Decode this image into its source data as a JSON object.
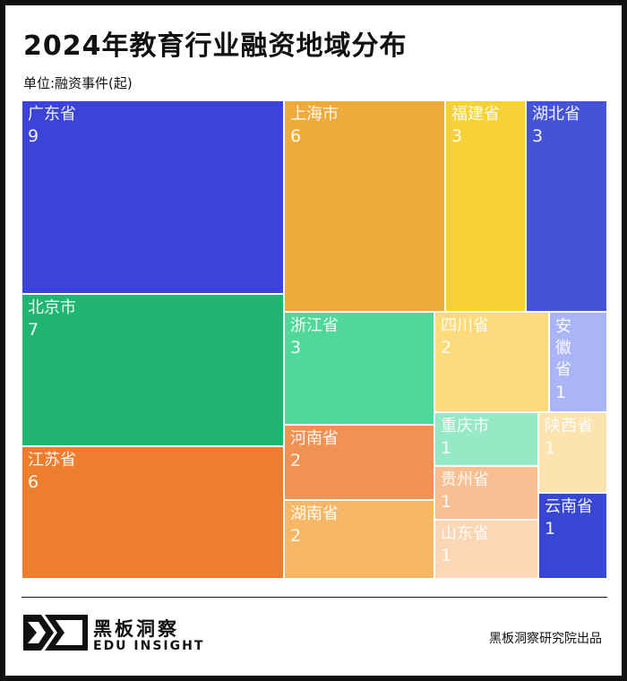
{
  "header": {
    "title": "2024年教育行业融资地域分布",
    "subtitle": "单位:融资事件(起)"
  },
  "chart_data": {
    "type": "treemap",
    "title": "2024年教育行业融资地域分布",
    "unit": "单位:融资事件(起)",
    "items": [
      {
        "name": "广东省",
        "value": 9,
        "color": "#3b44d6"
      },
      {
        "name": "北京市",
        "value": 7,
        "color": "#21b573"
      },
      {
        "name": "江苏省",
        "value": 6,
        "color": "#ed7e2d"
      },
      {
        "name": "上海市",
        "value": 6,
        "color": "#eeab3a"
      },
      {
        "name": "福建省",
        "value": 3,
        "color": "#f6d236"
      },
      {
        "name": "湖北省",
        "value": 3,
        "color": "#4553d8"
      },
      {
        "name": "浙江省",
        "value": 3,
        "color": "#4fd89a"
      },
      {
        "name": "河南省",
        "value": 2,
        "color": "#f19255"
      },
      {
        "name": "湖南省",
        "value": 2,
        "color": "#f8b765"
      },
      {
        "name": "四川省",
        "value": 2,
        "color": "#fcdb7c"
      },
      {
        "name": "安徽省",
        "value": 1,
        "color": "#aab5f7"
      },
      {
        "name": "重庆市",
        "value": 1,
        "color": "#95e9c4"
      },
      {
        "name": "陕西省",
        "value": 1,
        "color": "#fde3ad"
      },
      {
        "name": "贵州省",
        "value": 1,
        "color": "#f8bf92"
      },
      {
        "name": "山东省",
        "value": 1,
        "color": "#fbd7b6"
      },
      {
        "name": "云南省",
        "value": 1,
        "color": "#3746d3"
      }
    ]
  },
  "footer": {
    "logo_cn": "黑板洞察",
    "logo_en": "EDU INSIGHT",
    "credit": "黑板洞察研究院出品"
  }
}
